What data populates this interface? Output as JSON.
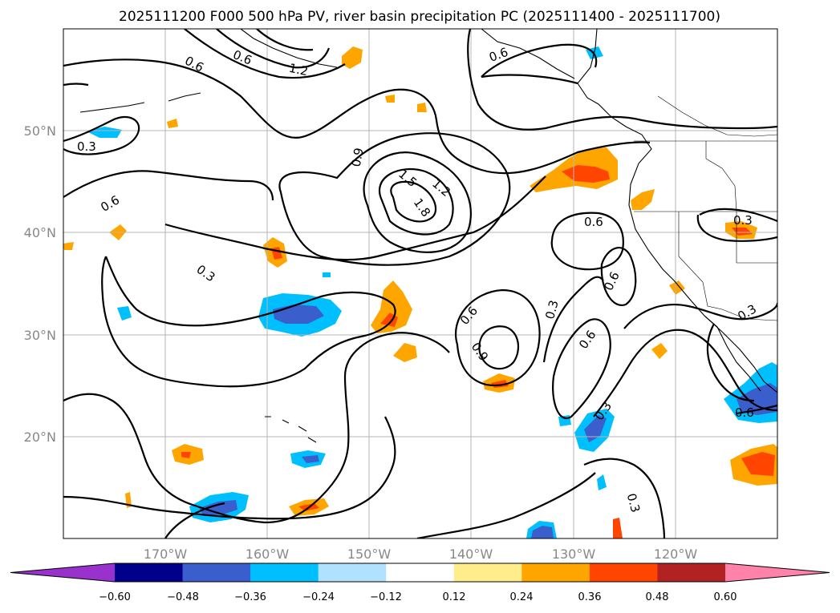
{
  "title": "2025111200 F000 500 hPa PV, river basin precipitation PC (2025111400 - 2025111700)",
  "lat_labels": [
    "50°N",
    "40°N",
    "30°N",
    "20°N"
  ],
  "lon_labels": [
    "170°W",
    "160°W",
    "150°W",
    "140°W",
    "130°W",
    "120°W"
  ],
  "contour_labels": [
    "0.3",
    "0.6",
    "0.9",
    "1.2",
    "1.5",
    "1.8"
  ],
  "colorbar": {
    "ticks": [
      "−0.60",
      "−0.48",
      "−0.36",
      "−0.24",
      "−0.12",
      "0.12",
      "0.24",
      "0.36",
      "0.48",
      "0.60"
    ],
    "colors": [
      "#9932cc",
      "#00008b",
      "#3a5fcd",
      "#00bfff",
      "#b0e2ff",
      "#ffffff",
      "#ffec8b",
      "#ffa500",
      "#ff4500",
      "#b22222",
      "#ff82ab"
    ]
  }
}
